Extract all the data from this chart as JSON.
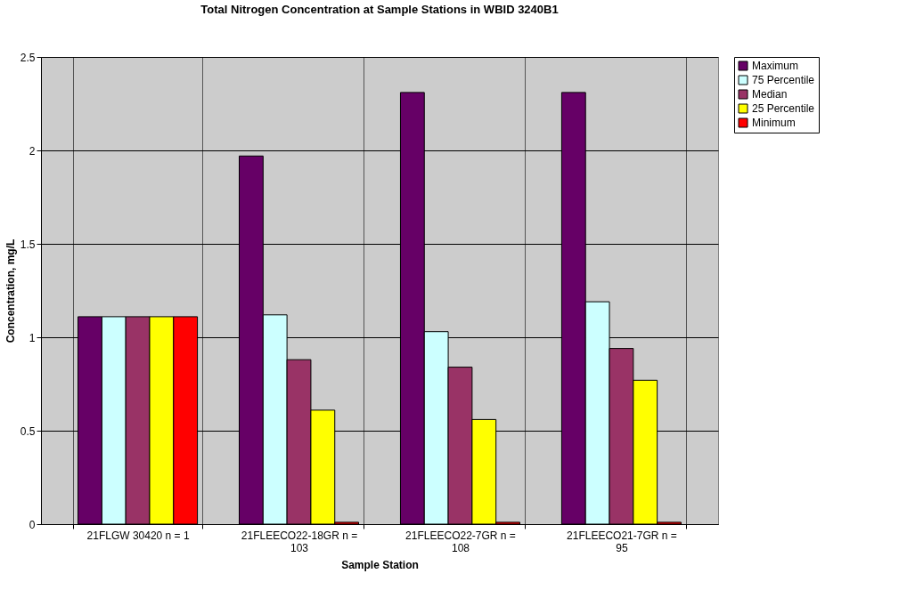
{
  "chart_data": {
    "type": "bar",
    "title": "Total Nitrogen Concentration at Sample Stations in WBID 3240B1",
    "xlabel": "Sample Station",
    "ylabel": "Concentration, mg/L",
    "categories": [
      "21FLGW  30420 n = 1",
      "21FLEECO22-18GR n = 103",
      "21FLEECO22-7GR n = 108",
      "21FLEECO21-7GR n = 95"
    ],
    "series": [
      {
        "name": "Maximum",
        "color": "#660066",
        "values": [
          1.11,
          1.97,
          2.31,
          2.31
        ]
      },
      {
        "name": "75 Percentile",
        "color": "#ccffff",
        "values": [
          1.11,
          1.12,
          1.03,
          1.19
        ]
      },
      {
        "name": "Median",
        "color": "#993366",
        "values": [
          1.11,
          0.88,
          0.84,
          0.94
        ]
      },
      {
        "name": "25 Percentile",
        "color": "#ffff00",
        "values": [
          1.11,
          0.61,
          0.56,
          0.77
        ]
      },
      {
        "name": "Minimum",
        "color": "#ff0000",
        "values": [
          1.11,
          0.01,
          0.01,
          0.01
        ]
      }
    ],
    "ylim": [
      0,
      2.5
    ],
    "yticks": [
      0,
      0.5,
      1,
      1.5,
      2,
      2.5
    ],
    "grid": true,
    "legend": "right"
  }
}
